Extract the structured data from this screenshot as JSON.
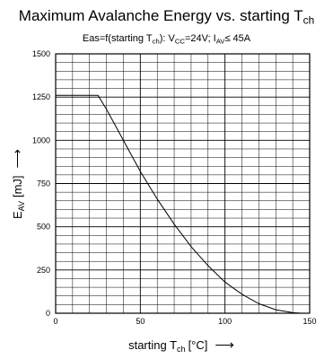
{
  "chart_data": {
    "type": "line",
    "title": {
      "main": "Maximum Avalanche Energy vs. starting T",
      "sub": "ch"
    },
    "subtitle": {
      "parts": [
        "Eas=f(starting T",
        "ch",
        "): V",
        "CC",
        "=24V; I",
        "AV",
        "≤ 45A"
      ]
    },
    "xlabel": {
      "main": "starting T",
      "sub": "ch",
      "unit": "[°C]",
      "arrow": "⟶"
    },
    "ylabel": {
      "main": "E",
      "sub": "AV",
      "unit": "[mJ]",
      "arrow": "⟶"
    },
    "xlim": [
      0,
      150
    ],
    "ylim": [
      0,
      1500
    ],
    "x_ticks": [
      0,
      50,
      100,
      150
    ],
    "y_ticks": [
      0,
      250,
      500,
      750,
      1000,
      1250,
      1500
    ],
    "grid": true,
    "series": [
      {
        "x": [
          0,
          25,
          30,
          40,
          50,
          60,
          70,
          80,
          90,
          100,
          110,
          120,
          130,
          140,
          145
        ],
        "y": [
          1260,
          1260,
          1180,
          1000,
          820,
          660,
          515,
          385,
          275,
          180,
          110,
          55,
          20,
          3,
          0
        ]
      }
    ],
    "colors": {
      "line": "#000000",
      "grid": "#000000",
      "axis": "#000000"
    }
  }
}
